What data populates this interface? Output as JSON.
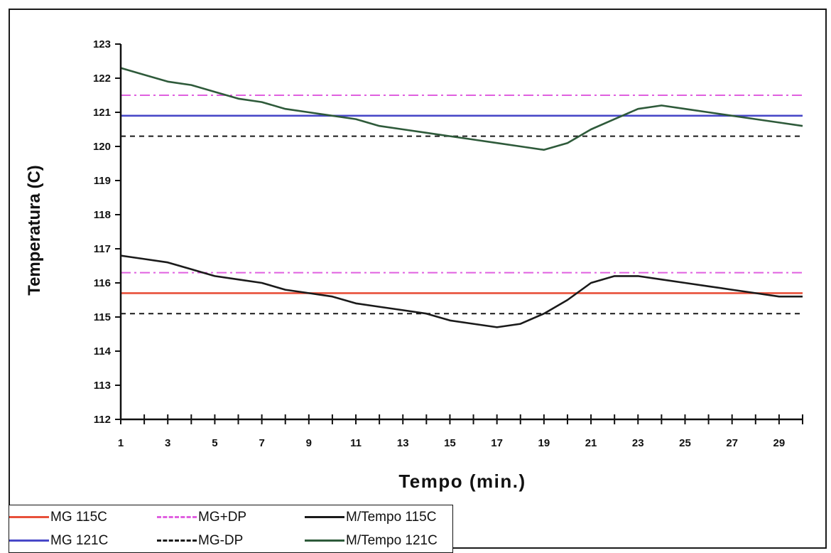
{
  "chart_data": {
    "type": "line",
    "title": "",
    "xlabel": "Tempo (min.)",
    "ylabel": "Temperatura (C)",
    "xlim": [
      1,
      30
    ],
    "ylim": [
      112,
      123
    ],
    "x": [
      1,
      2,
      3,
      4,
      5,
      6,
      7,
      8,
      9,
      10,
      11,
      12,
      13,
      14,
      15,
      16,
      17,
      18,
      19,
      20,
      21,
      22,
      23,
      24,
      25,
      26,
      27,
      28,
      29,
      30
    ],
    "x_ticks": [
      1,
      3,
      5,
      7,
      9,
      11,
      13,
      15,
      17,
      19,
      21,
      23,
      25,
      27,
      29
    ],
    "y_ticks": [
      112,
      113,
      114,
      115,
      116,
      117,
      118,
      119,
      120,
      121,
      122,
      123
    ],
    "grid": false,
    "legend_position": "bottom-left",
    "series": [
      {
        "name": "MG 115C",
        "color": "#e8503a",
        "style": "solid",
        "values": [
          115.7,
          115.7,
          115.7,
          115.7,
          115.7,
          115.7,
          115.7,
          115.7,
          115.7,
          115.7,
          115.7,
          115.7,
          115.7,
          115.7,
          115.7,
          115.7,
          115.7,
          115.7,
          115.7,
          115.7,
          115.7,
          115.7,
          115.7,
          115.7,
          115.7,
          115.7,
          115.7,
          115.7,
          115.7,
          115.7
        ]
      },
      {
        "name": "MG+DP",
        "color": "#e060e0",
        "style": "dashdot",
        "values": [
          116.3,
          116.3,
          116.3,
          116.3,
          116.3,
          116.3,
          116.3,
          116.3,
          116.3,
          116.3,
          116.3,
          116.3,
          116.3,
          116.3,
          116.3,
          116.3,
          116.3,
          116.3,
          116.3,
          116.3,
          116.3,
          116.3,
          116.3,
          116.3,
          116.3,
          116.3,
          116.3,
          116.3,
          116.3,
          116.3
        ]
      },
      {
        "name": "",
        "color": "#e060e0",
        "style": "dashdot",
        "values": [
          121.5,
          121.5,
          121.5,
          121.5,
          121.5,
          121.5,
          121.5,
          121.5,
          121.5,
          121.5,
          121.5,
          121.5,
          121.5,
          121.5,
          121.5,
          121.5,
          121.5,
          121.5,
          121.5,
          121.5,
          121.5,
          121.5,
          121.5,
          121.5,
          121.5,
          121.5,
          121.5,
          121.5,
          121.5,
          121.5
        ]
      },
      {
        "name": "M/Tempo 115C",
        "color": "#1a1a1a",
        "style": "solid",
        "values": [
          116.8,
          116.7,
          116.6,
          116.4,
          116.2,
          116.1,
          116.0,
          115.8,
          115.7,
          115.6,
          115.4,
          115.3,
          115.2,
          115.1,
          114.9,
          114.8,
          114.7,
          114.8,
          115.1,
          115.5,
          116.0,
          116.2,
          116.2,
          116.1,
          116.0,
          115.9,
          115.8,
          115.7,
          115.6,
          115.6
        ]
      },
      {
        "name": "MG 121C",
        "color": "#4848c8",
        "style": "solid",
        "values": [
          120.9,
          120.9,
          120.9,
          120.9,
          120.9,
          120.9,
          120.9,
          120.9,
          120.9,
          120.9,
          120.9,
          120.9,
          120.9,
          120.9,
          120.9,
          120.9,
          120.9,
          120.9,
          120.9,
          120.9,
          120.9,
          120.9,
          120.9,
          120.9,
          120.9,
          120.9,
          120.9,
          120.9,
          120.9,
          120.9
        ]
      },
      {
        "name": "MG-DP",
        "color": "#1a1a1a",
        "style": "dashed",
        "values": [
          115.1,
          115.1,
          115.1,
          115.1,
          115.1,
          115.1,
          115.1,
          115.1,
          115.1,
          115.1,
          115.1,
          115.1,
          115.1,
          115.1,
          115.1,
          115.1,
          115.1,
          115.1,
          115.1,
          115.1,
          115.1,
          115.1,
          115.1,
          115.1,
          115.1,
          115.1,
          115.1,
          115.1,
          115.1,
          115.1
        ]
      },
      {
        "name": "",
        "color": "#1a1a1a",
        "style": "dashed",
        "values": [
          120.3,
          120.3,
          120.3,
          120.3,
          120.3,
          120.3,
          120.3,
          120.3,
          120.3,
          120.3,
          120.3,
          120.3,
          120.3,
          120.3,
          120.3,
          120.3,
          120.3,
          120.3,
          120.3,
          120.3,
          120.3,
          120.3,
          120.3,
          120.3,
          120.3,
          120.3,
          120.3,
          120.3,
          120.3,
          120.3
        ]
      },
      {
        "name": "M/Tempo 121C",
        "color": "#2e5a3a",
        "style": "solid",
        "values": [
          122.3,
          122.1,
          121.9,
          121.8,
          121.6,
          121.4,
          121.3,
          121.1,
          121.0,
          120.9,
          120.8,
          120.6,
          120.5,
          120.4,
          120.3,
          120.2,
          120.1,
          120.0,
          119.9,
          120.1,
          120.5,
          120.8,
          121.1,
          121.2,
          121.1,
          121.0,
          120.9,
          120.8,
          120.7,
          120.6
        ]
      }
    ],
    "legend": [
      [
        "MG 115C",
        "MG+DP",
        "M/Tempo 115C"
      ],
      [
        "MG 121C",
        "MG-DP",
        "M/Tempo 121C"
      ]
    ]
  }
}
